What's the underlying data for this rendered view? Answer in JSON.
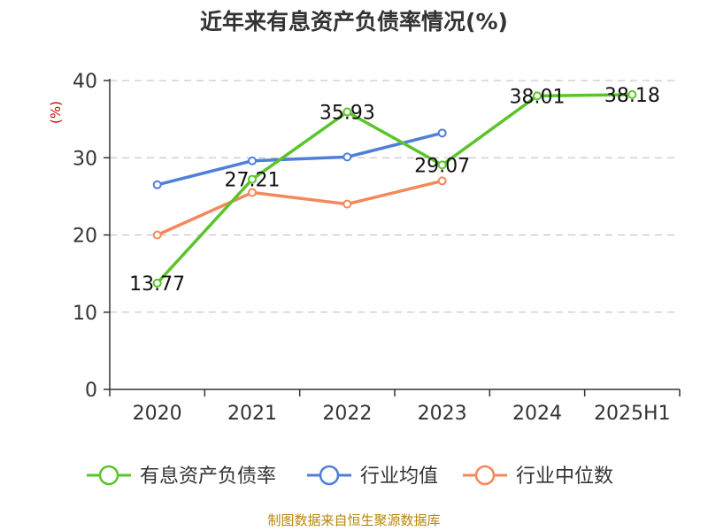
{
  "chart_data": {
    "type": "line",
    "title": "近年来有息资产负债率情况(%)",
    "ylabel": "(%)",
    "xlabel": "",
    "categories": [
      "2020",
      "2021",
      "2022",
      "2023",
      "2024",
      "2025H1"
    ],
    "ylim": [
      0,
      40
    ],
    "yticks": [
      0,
      10,
      20,
      30,
      40
    ],
    "grid": true,
    "legend_position": "bottom",
    "series": [
      {
        "name": "有息资产负债率",
        "color": "#5cc42b",
        "values": [
          13.77,
          27.21,
          35.93,
          29.07,
          38.01,
          38.18
        ],
        "labels": [
          "13.77",
          "27.21",
          "35.93",
          "29.07",
          "38.01",
          "38.18"
        ]
      },
      {
        "name": "行业均值",
        "color": "#4f7fd9",
        "values": [
          26.5,
          29.6,
          30.1,
          33.2,
          null,
          null
        ]
      },
      {
        "name": "行业中位数",
        "color": "#f5885a",
        "values": [
          20.0,
          25.5,
          24.0,
          27.0,
          null,
          null
        ]
      }
    ],
    "source": "制图数据来自恒生聚源数据库"
  }
}
